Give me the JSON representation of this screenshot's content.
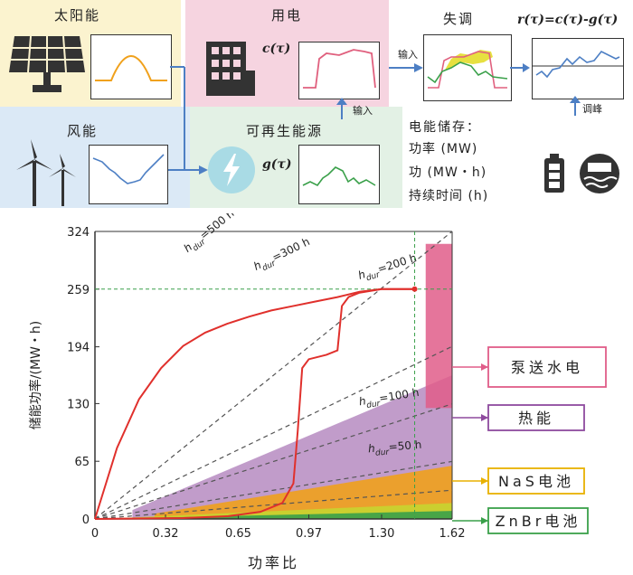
{
  "top": {
    "solar": "太阳能",
    "wind": "风能",
    "load": "用电",
    "load_fn": "c(τ)",
    "load_input": "输入",
    "renew": "可再生能源",
    "renew_fn": "g(τ)",
    "mismatch": "失调",
    "mismatch_input": "输入",
    "residual_fn": "r(τ)=c(τ)-g(τ)",
    "peak": "调峰",
    "storage_title": "电能储存：",
    "storage_power": "功率 (MW)",
    "storage_energy": "功 (MW・h)",
    "storage_duration": "持续时间 (h)"
  },
  "chart_data": {
    "type": "line",
    "xlabel": "功率比",
    "ylabel": "储能功率/(MW・h)",
    "xticks": [
      "0",
      "0.32",
      "0.65",
      "0.97",
      "1.30",
      "1.62"
    ],
    "yticks": [
      "0",
      "65",
      "130",
      "194",
      "259",
      "324"
    ],
    "xlim": [
      0,
      1.62
    ],
    "ylim": [
      0,
      324
    ],
    "reference_lines": [
      {
        "label": "h",
        "sub": "dur",
        "suffix": "=500 h",
        "slope": 500
      },
      {
        "label": "h",
        "sub": "dur",
        "suffix": "=300 h",
        "slope": 300
      },
      {
        "label": "h",
        "sub": "dur",
        "suffix": "=200 h",
        "slope": 200
      },
      {
        "label": "h",
        "sub": "dur",
        "suffix": "=100 h",
        "slope": 100
      },
      {
        "label": "h",
        "sub": "dur",
        "suffix": "=50 h",
        "slope": 50
      }
    ],
    "regions": [
      {
        "name": "泵送水电",
        "color": "#e05d89"
      },
      {
        "name": "热能",
        "color": "#8e4a9e"
      },
      {
        "name": "NaS电池",
        "color": "#f0a11c"
      },
      {
        "name": "ZnBr电池",
        "color": "#3aa04a"
      }
    ],
    "max_point": {
      "x": 1.45,
      "y": 259
    },
    "series": [
      {
        "color": "#e0302c",
        "x": [
          0,
          0.05,
          0.1,
          0.2,
          0.3,
          0.4,
          0.5,
          0.6,
          0.7,
          0.8,
          0.9,
          1.0,
          1.1,
          1.2,
          1.3,
          1.45
        ],
        "y": [
          0,
          40,
          80,
          135,
          170,
          195,
          210,
          220,
          228,
          235,
          240,
          245,
          250,
          256,
          259,
          259
        ]
      },
      {
        "color": "#e0302c",
        "x": [
          0,
          0.2,
          0.4,
          0.6,
          0.75,
          0.85,
          0.9,
          0.92,
          0.94,
          0.97,
          1.05,
          1.1,
          1.12,
          1.15,
          1.2,
          1.3,
          1.45
        ],
        "y": [
          0,
          0.5,
          1,
          3,
          8,
          18,
          40,
          100,
          170,
          180,
          185,
          190,
          240,
          250,
          255,
          259,
          259
        ]
      }
    ]
  }
}
